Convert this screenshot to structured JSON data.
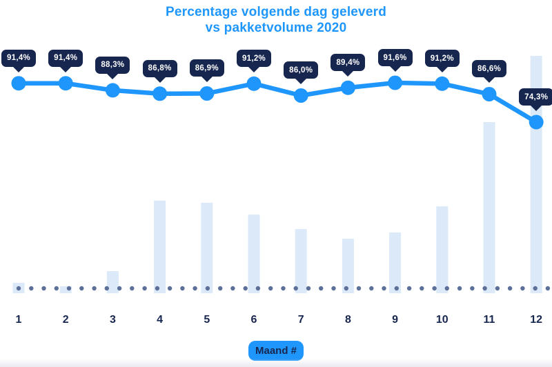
{
  "header": {
    "title_line1": "Percentage volgende dag geleverd",
    "title_line2": "vs pakketvolume 2020"
  },
  "colors": {
    "accent_blue": "#1e96fc",
    "navy": "#17264f",
    "bar_fill": "#dbe9f8",
    "dot_slate": "#5c7099",
    "badge_text": "#ffffff"
  },
  "chart_data": {
    "type": "combo",
    "title": "Percentage volgende dag geleverd vs pakketvolume 2020",
    "xlabel": "Maand #",
    "categories": [
      "1",
      "2",
      "3",
      "4",
      "5",
      "6",
      "7",
      "8",
      "9",
      "10",
      "11",
      "12"
    ],
    "series": [
      {
        "name": "Percentage volgende dag geleverd",
        "type": "line",
        "unit": "%",
        "color": "#1e96fc",
        "values": [
          91.4,
          91.4,
          88.3,
          86.8,
          86.9,
          91.2,
          86.0,
          89.4,
          91.6,
          91.2,
          86.6,
          74.3
        ],
        "labels": [
          "91,4%",
          "91,4%",
          "88,3%",
          "86,8%",
          "86,9%",
          "91,2%",
          "86,0%",
          "89,4%",
          "91,6%",
          "91,2%",
          "86,6%",
          "74,3%"
        ]
      },
      {
        "name": "Pakketvolume",
        "type": "bar",
        "unit": "relative index (max = 100, no visible axis)",
        "color": "#dbe9f8",
        "values": [
          4.4,
          2.9,
          9.3,
          39.0,
          38.1,
          33.1,
          27.0,
          23.0,
          25.6,
          36.6,
          72.1,
          100.0
        ]
      }
    ],
    "legend": "none",
    "grid": "none",
    "y_axis_visible": false,
    "baseline_dotted": true
  }
}
